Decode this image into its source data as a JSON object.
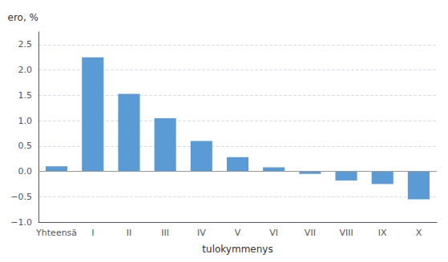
{
  "chart_data": {
    "type": "bar",
    "categories": [
      "Yhteensä",
      "I",
      "II",
      "III",
      "IV",
      "V",
      "VI",
      "VII",
      "VIII",
      "IX",
      "X"
    ],
    "values": [
      0.1,
      2.25,
      1.53,
      1.05,
      0.6,
      0.28,
      0.08,
      -0.05,
      -0.18,
      -0.25,
      -0.55
    ],
    "color": "#5b9bd5",
    "xlabel": "tulokymmenys",
    "ylabel": "ero, %",
    "ylim": [
      -1.0,
      2.75
    ],
    "yticks": [
      {
        "value": -1.0,
        "label": "−1.0"
      },
      {
        "value": -0.5,
        "label": "−0.5"
      },
      {
        "value": 0.0,
        "label": "0.0"
      },
      0.5,
      {
        "value": 1.0,
        "label": "1.0"
      },
      1.5,
      {
        "value": 2.0,
        "label": "2.0"
      },
      2.5
    ],
    "grid": true
  }
}
